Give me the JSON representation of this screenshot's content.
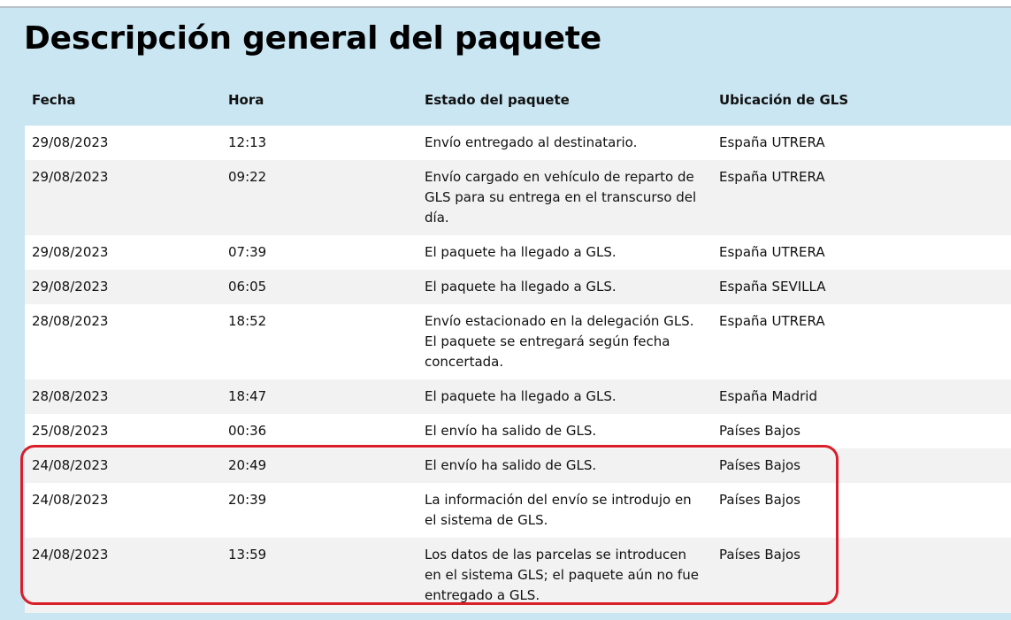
{
  "page": {
    "title": "Descripción general del paquete"
  },
  "table": {
    "headers": {
      "fecha": "Fecha",
      "hora": "Hora",
      "estado": "Estado del paquete",
      "ubicacion": "Ubicación de GLS"
    },
    "rows": [
      {
        "fecha": "29/08/2023",
        "hora": "12:13",
        "estado": "Envío entregado al destinatario.",
        "ubicacion": "España UTRERA"
      },
      {
        "fecha": "29/08/2023",
        "hora": "09:22",
        "estado": "Envío cargado en vehículo de reparto de GLS para su entrega en el transcurso del día.",
        "ubicacion": "España UTRERA"
      },
      {
        "fecha": "29/08/2023",
        "hora": "07:39",
        "estado": "El paquete ha llegado a GLS.",
        "ubicacion": "España UTRERA"
      },
      {
        "fecha": "29/08/2023",
        "hora": "06:05",
        "estado": "El paquete ha llegado a GLS.",
        "ubicacion": "España SEVILLA"
      },
      {
        "fecha": "28/08/2023",
        "hora": "18:52",
        "estado": "Envío estacionado en la delegación GLS. El paquete se entregará según fecha concertada.",
        "ubicacion": "España UTRERA"
      },
      {
        "fecha": "28/08/2023",
        "hora": "18:47",
        "estado": "El paquete ha llegado a GLS.",
        "ubicacion": "España Madrid"
      },
      {
        "fecha": "25/08/2023",
        "hora": "00:36",
        "estado": "El envío ha salido de GLS.",
        "ubicacion": "Países Bajos"
      },
      {
        "fecha": "24/08/2023",
        "hora": "20:49",
        "estado": "El envío ha salido de GLS.",
        "ubicacion": "Países Bajos"
      },
      {
        "fecha": "24/08/2023",
        "hora": "20:39",
        "estado": "La información del envío se introdujo en el sistema de GLS.",
        "ubicacion": "Países Bajos"
      },
      {
        "fecha": "24/08/2023",
        "hora": "13:59",
        "estado": "Los datos de las parcelas se introducen en el sistema GLS; el paquete aún no fue entregado a GLS.",
        "ubicacion": "Países Bajos"
      }
    ]
  },
  "annotation": {
    "highlight_color": "#d81f2a"
  },
  "colors": {
    "background": "#c9e6f2",
    "row_odd": "#ffffff",
    "row_even": "#f2f2f2"
  }
}
